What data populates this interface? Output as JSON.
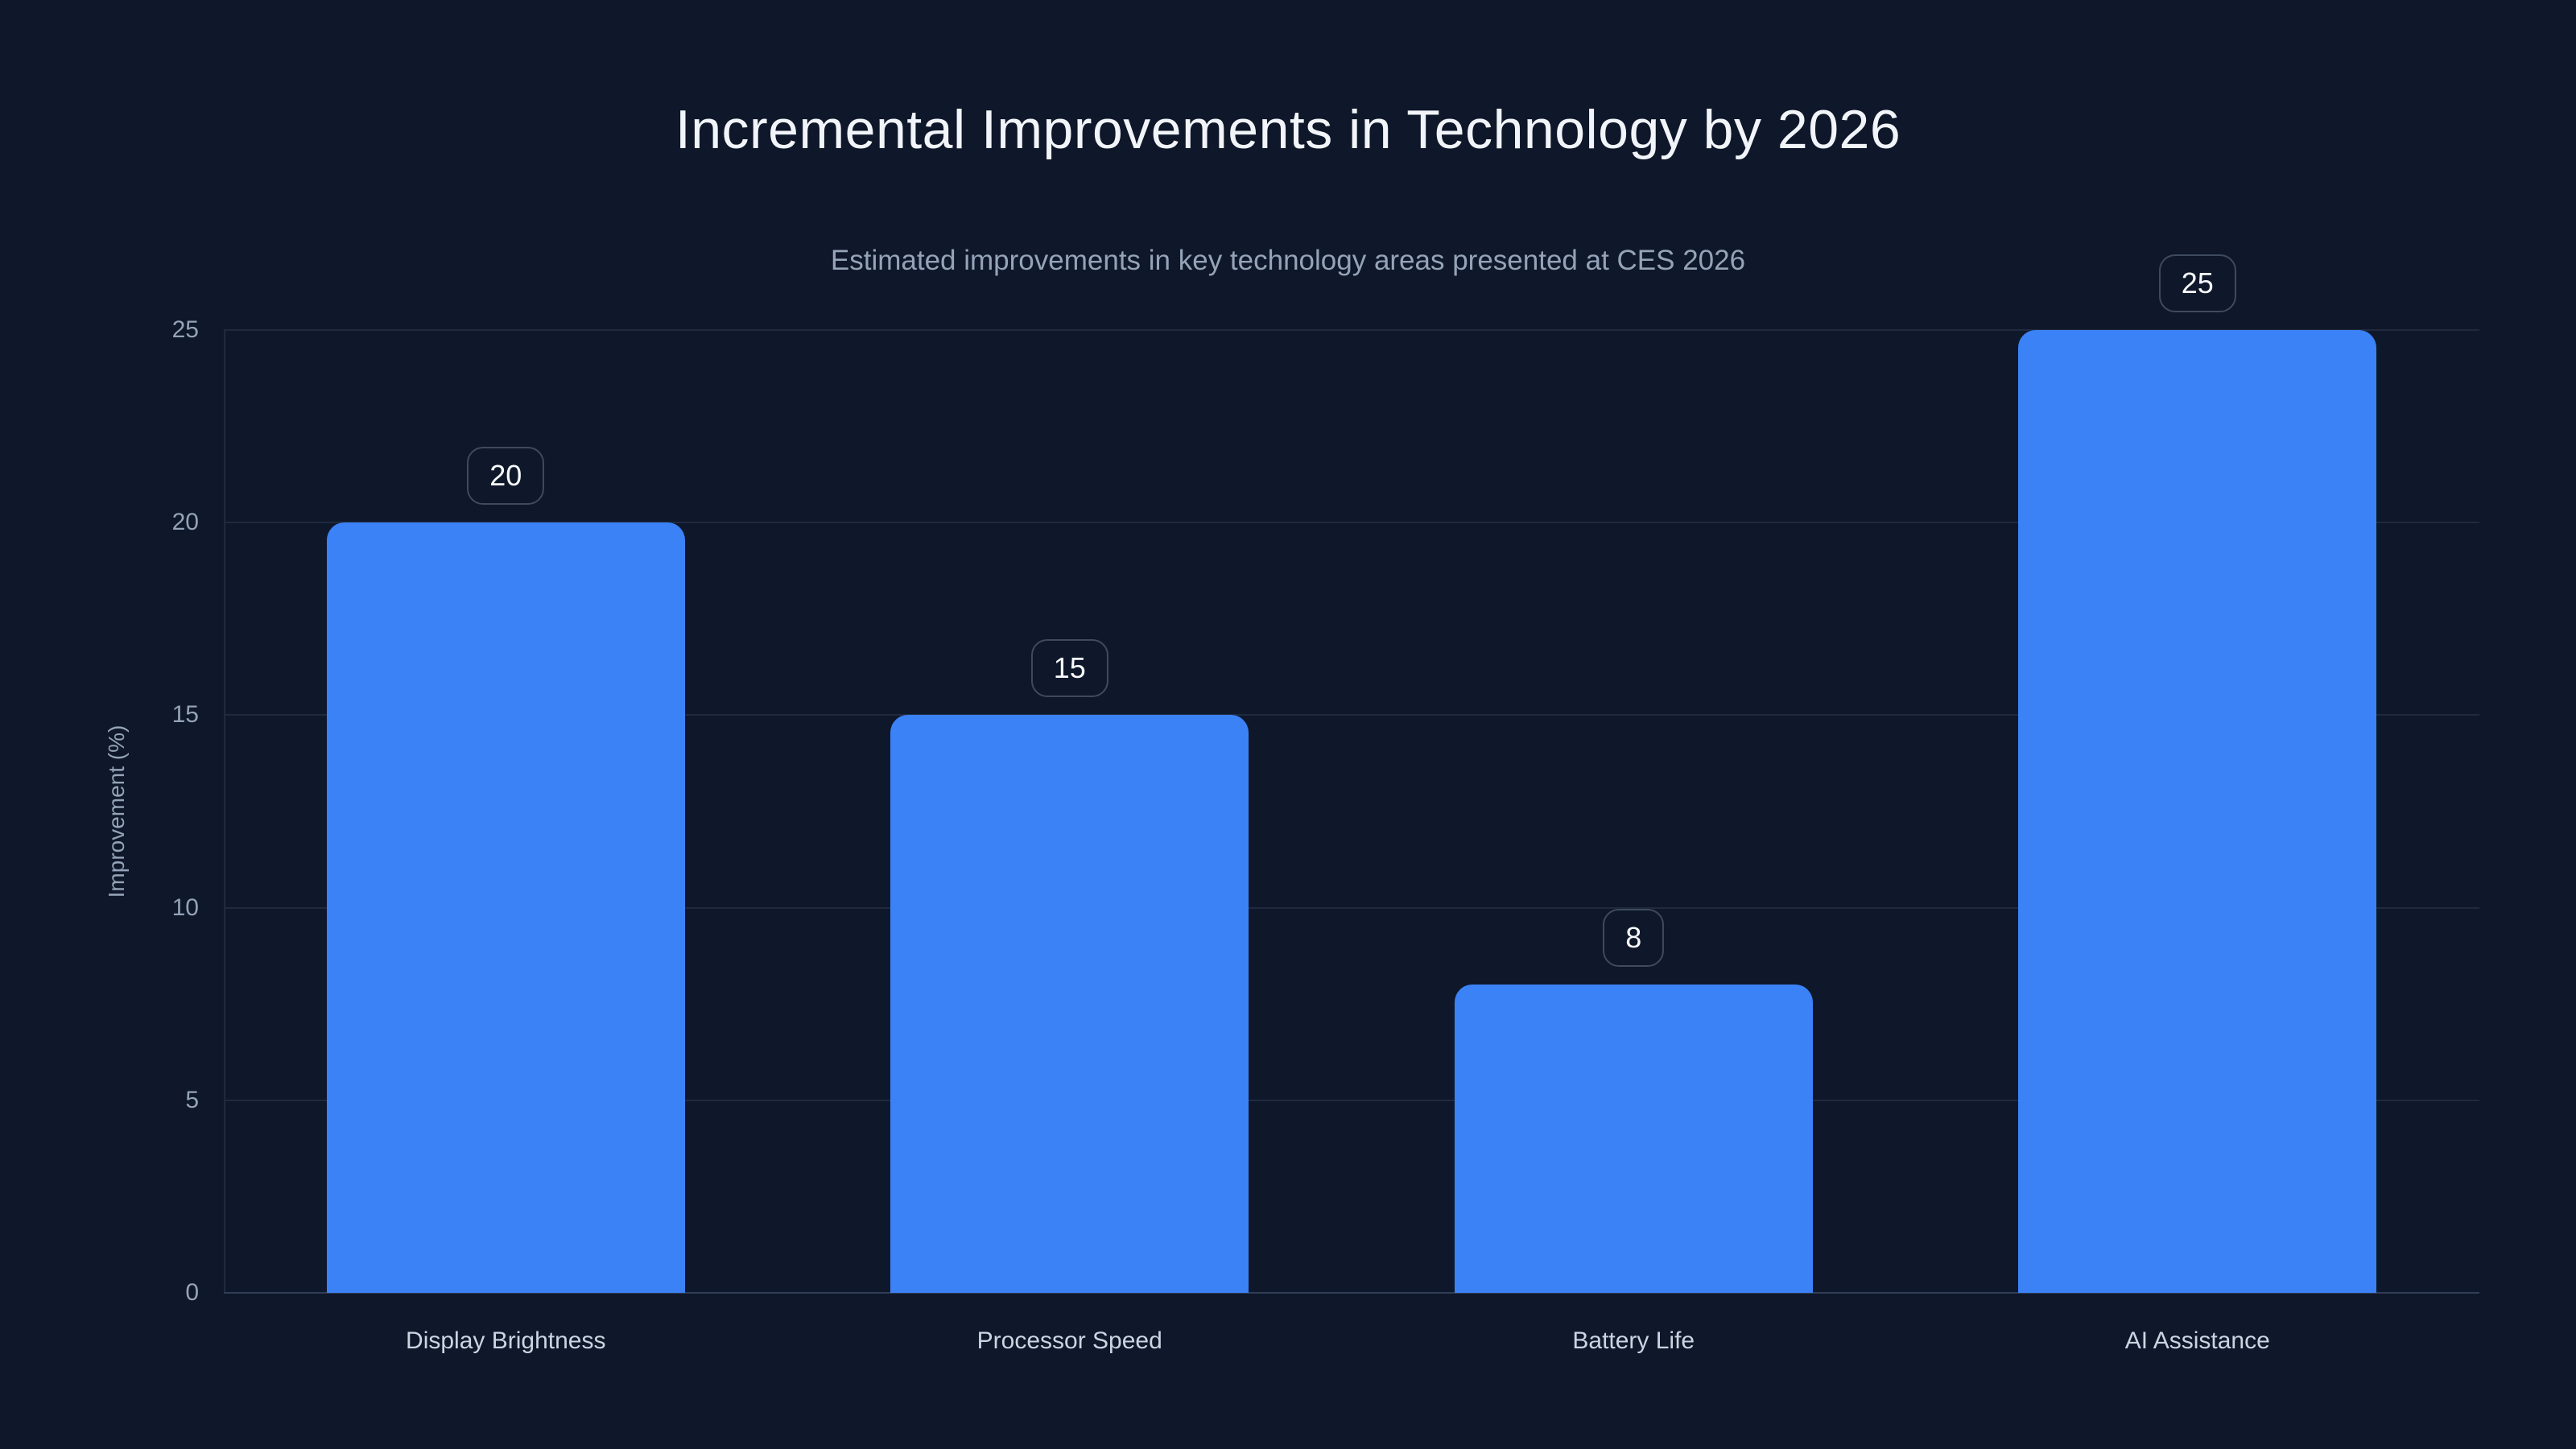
{
  "page": {
    "background": "#0f172a"
  },
  "chart_data": {
    "type": "bar",
    "title": "Incremental Improvements in Technology by 2026",
    "subtitle": "Estimated improvements in key technology areas presented at CES 2026",
    "categories": [
      "Display Brightness",
      "Processor Speed",
      "Battery Life",
      "AI Assistance"
    ],
    "values": [
      20,
      15,
      8,
      25
    ],
    "value_labels": [
      "20",
      "15",
      "8",
      "25"
    ],
    "xlabel": "",
    "ylabel": "Improvement (%)",
    "ylim": [
      0,
      25
    ],
    "yticks": [
      0,
      5,
      10,
      15,
      20,
      25
    ],
    "grid": true,
    "legend": "none",
    "bar_color": "#3b82f6",
    "colors": {
      "background": "#0f172a",
      "title": "#f1f5f9",
      "subtitle": "#94a3b8",
      "tick_label": "#94a3b8",
      "category_label": "#cbd5e1",
      "gridline": "#1f2a40",
      "baseline": "#313d55",
      "badge_border": "#3e4a5e",
      "badge_text": "#f8fafc"
    }
  }
}
